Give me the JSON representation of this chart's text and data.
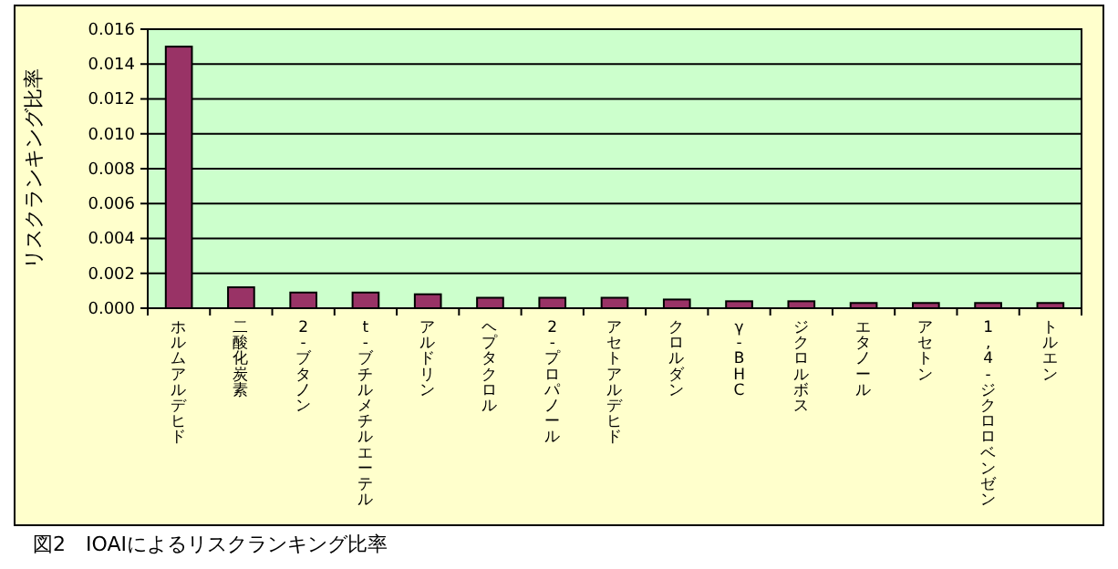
{
  "chart_data": {
    "type": "bar",
    "ylabel": "リスクランキング比率",
    "categories": [
      "ホルムアルデヒド",
      "二酸化炭素",
      "2-ブタノン",
      "t-ブチルメチルエーテル",
      "アルドリン",
      "ヘプタクロル",
      "2-プロパノール",
      "アセトアルデヒド",
      "クロルダン",
      "γ-BHC",
      "ジクロルボス",
      "エタノール",
      "アセトン",
      "1,4-ジクロロベンゼン",
      "トルエン"
    ],
    "values": [
      0.015,
      0.0012,
      0.0009,
      0.0009,
      0.0008,
      0.0006,
      0.0006,
      0.0006,
      0.0005,
      0.0004,
      0.0004,
      0.0003,
      0.0003,
      0.0003,
      0.0003
    ],
    "color": "#993366",
    "ylim": [
      0,
      0.016
    ],
    "yticks": [
      {
        "value": 0,
        "label": "0.000"
      },
      {
        "value": 0.002,
        "label": "0.002"
      },
      {
        "value": 0.004,
        "label": "0.004"
      },
      {
        "value": 0.006,
        "label": "0.006"
      },
      {
        "value": 0.008,
        "label": "0.008"
      },
      {
        "value": 0.01,
        "label": "0.010"
      },
      {
        "value": 0.012,
        "label": "0.012"
      },
      {
        "value": 0.014,
        "label": "0.014"
      },
      {
        "value": 0.016,
        "label": "0.016"
      }
    ],
    "grid": "y",
    "annotations": [
      "図2　IOAIによるリスクランキング比率"
    ]
  }
}
